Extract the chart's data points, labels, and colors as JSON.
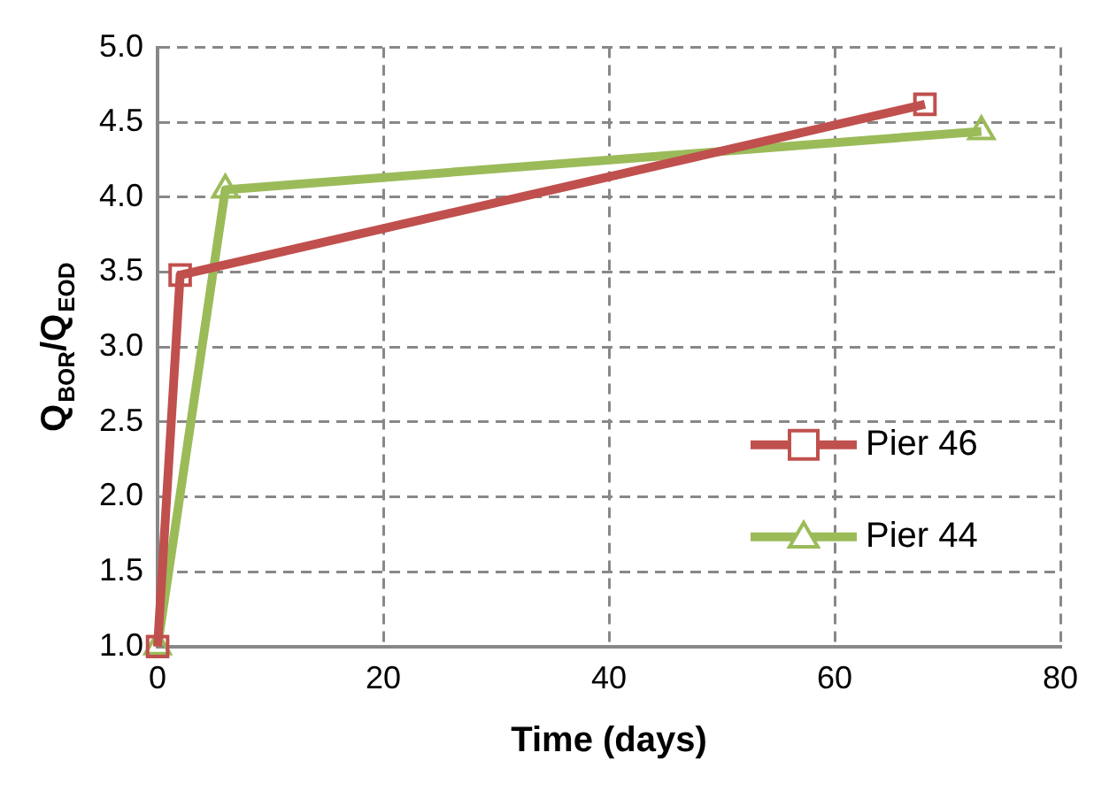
{
  "chart_data": {
    "type": "line",
    "xlabel": "Time (days)",
    "ylabel": "Q$_{BOR}$/Q$_{EOD}$",
    "xlim": [
      0,
      80
    ],
    "xticks": [
      0,
      20,
      40,
      60,
      80
    ],
    "ylim": [
      1,
      5
    ],
    "yticks": [
      {
        "value": 1,
        "label": "1.0"
      },
      {
        "value": 1.5,
        "label": "1.5"
      },
      {
        "value": 2,
        "label": "2.0"
      },
      {
        "value": 2.5,
        "label": "2.5"
      },
      {
        "value": 3,
        "label": "3.0"
      },
      {
        "value": 3.5,
        "label": "3.5"
      },
      {
        "value": 4,
        "label": "4.0"
      },
      {
        "value": 4.5,
        "label": "4.5"
      },
      {
        "value": 5,
        "label": "5.0"
      }
    ],
    "grid": true,
    "legend": "bottom right",
    "line_style": "solid",
    "series": [
      {
        "name": "Pier 46",
        "color": "#c0504d",
        "marker": "square",
        "x": [
          0,
          2,
          68
        ],
        "values": [
          1.0,
          3.48,
          4.62
        ]
      },
      {
        "name": "Pier 44",
        "color": "#9bbb59",
        "marker": "triangle",
        "x": [
          0,
          6,
          73
        ],
        "values": [
          1.0,
          4.05,
          4.44
        ]
      }
    ]
  }
}
